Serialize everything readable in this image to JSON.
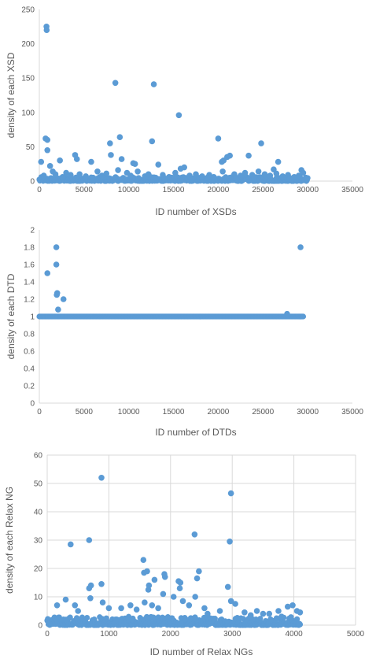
{
  "chart_data": [
    {
      "type": "scatter",
      "xlabel": "ID number of XSDs",
      "ylabel": "density of each XSD",
      "xlim": [
        0,
        35000
      ],
      "ylim": [
        0,
        250
      ],
      "xticks": [
        0,
        5000,
        10000,
        15000,
        20000,
        25000,
        30000,
        35000
      ],
      "yticks": [
        0,
        50,
        100,
        150,
        200,
        250
      ],
      "grid": false,
      "color": "#5b9bd5",
      "points": [
        [
          800,
          225
        ],
        [
          820,
          220
        ],
        [
          8500,
          143
        ],
        [
          12800,
          141
        ],
        [
          15600,
          96
        ],
        [
          700,
          62
        ],
        [
          900,
          60
        ],
        [
          9000,
          64
        ],
        [
          20000,
          62
        ],
        [
          7900,
          55
        ],
        [
          12600,
          58
        ],
        [
          24800,
          55
        ],
        [
          900,
          45
        ],
        [
          200,
          28
        ],
        [
          2300,
          30
        ],
        [
          4000,
          38
        ],
        [
          4200,
          32
        ],
        [
          5800,
          28
        ],
        [
          8000,
          38
        ],
        [
          9200,
          32
        ],
        [
          10500,
          26
        ],
        [
          10700,
          25
        ],
        [
          13300,
          24
        ],
        [
          15800,
          18
        ],
        [
          16200,
          20
        ],
        [
          20400,
          28
        ],
        [
          20600,
          30
        ],
        [
          21000,
          35
        ],
        [
          21300,
          37
        ],
        [
          20500,
          14
        ],
        [
          23400,
          37
        ],
        [
          26700,
          28
        ],
        [
          26200,
          17
        ],
        [
          29300,
          16
        ],
        [
          29500,
          12
        ],
        [
          1200,
          22
        ],
        [
          1500,
          14
        ],
        [
          3000,
          12
        ],
        [
          3500,
          9
        ],
        [
          4500,
          10
        ],
        [
          6500,
          14
        ],
        [
          7000,
          8
        ],
        [
          7500,
          11
        ],
        [
          8800,
          16
        ],
        [
          9800,
          12
        ],
        [
          10200,
          8
        ],
        [
          11000,
          14
        ],
        [
          11800,
          7
        ],
        [
          12200,
          10
        ],
        [
          13800,
          9
        ],
        [
          14500,
          6
        ],
        [
          15200,
          12
        ],
        [
          16800,
          8
        ],
        [
          17500,
          10
        ],
        [
          18200,
          7
        ],
        [
          19000,
          9
        ],
        [
          19500,
          6
        ],
        [
          21800,
          10
        ],
        [
          22500,
          8
        ],
        [
          23000,
          12
        ],
        [
          23800,
          9
        ],
        [
          24500,
          14
        ],
        [
          25200,
          10
        ],
        [
          25800,
          8
        ],
        [
          26500,
          11
        ],
        [
          27200,
          7
        ],
        [
          27800,
          9
        ],
        [
          28500,
          6
        ],
        [
          29000,
          8
        ],
        [
          29800,
          5
        ],
        [
          500,
          8
        ],
        [
          1800,
          10
        ],
        [
          2600,
          6
        ],
        [
          5200,
          7
        ],
        [
          6000,
          5
        ],
        [
          13000,
          5
        ],
        [
          14000,
          4
        ],
        [
          17000,
          4
        ],
        [
          18800,
          5
        ],
        [
          22000,
          5
        ],
        [
          24000,
          4
        ],
        [
          28000,
          4
        ]
      ],
      "dense_baseline": {
        "x_range": [
          0,
          30000
        ],
        "y_range": [
          0,
          6
        ]
      }
    },
    {
      "type": "scatter",
      "xlabel": "ID number of DTDs",
      "ylabel": "density of each DTD",
      "xlim": [
        0,
        35000
      ],
      "ylim": [
        0,
        2
      ],
      "xticks": [
        0,
        5000,
        10000,
        15000,
        20000,
        25000,
        30000,
        35000
      ],
      "yticks": [
        0,
        0.2,
        0.4,
        0.6,
        0.8,
        1,
        1.2,
        1.4,
        1.6,
        1.8,
        2
      ],
      "ytick_labels": [
        "0",
        "0.2",
        "0.4",
        "0.6",
        "0.8",
        "1",
        "1.2",
        "1.4",
        "1.6",
        "1.8",
        "2"
      ],
      "grid": false,
      "color": "#5b9bd5",
      "points": [
        [
          900,
          1.5
        ],
        [
          1900,
          1.8
        ],
        [
          1900,
          1.6
        ],
        [
          2000,
          1.27
        ],
        [
          1950,
          1.25
        ],
        [
          2700,
          1.2
        ],
        [
          2100,
          1.08
        ],
        [
          27700,
          1.03
        ],
        [
          29200,
          1.8
        ]
      ],
      "dense_baseline": {
        "x_range": [
          0,
          29500
        ],
        "y": 1
      }
    },
    {
      "type": "scatter",
      "xlabel": "ID number of Relax NGs",
      "ylabel": "density of each Relax NG",
      "xlim": [
        0,
        5000
      ],
      "ylim": [
        0,
        60
      ],
      "xticks": [
        0,
        1000,
        2000,
        3000,
        4000,
        5000
      ],
      "yticks": [
        0,
        10,
        20,
        30,
        40,
        50,
        60
      ],
      "grid": true,
      "color": "#5b9bd5",
      "points": [
        [
          880,
          52
        ],
        [
          2980,
          46.5
        ],
        [
          2390,
          32
        ],
        [
          680,
          30
        ],
        [
          2960,
          29.5
        ],
        [
          380,
          28.5
        ],
        [
          1560,
          23
        ],
        [
          1620,
          19
        ],
        [
          2460,
          19
        ],
        [
          1570,
          18.5
        ],
        [
          1900,
          18
        ],
        [
          1910,
          17
        ],
        [
          1740,
          16
        ],
        [
          2430,
          16.5
        ],
        [
          2130,
          15.5
        ],
        [
          2160,
          15
        ],
        [
          1650,
          14
        ],
        [
          880,
          14.5
        ],
        [
          710,
          14
        ],
        [
          2930,
          13.5
        ],
        [
          680,
          13
        ],
        [
          1640,
          12.5
        ],
        [
          2150,
          13
        ],
        [
          1880,
          11
        ],
        [
          2050,
          10
        ],
        [
          2400,
          10
        ],
        [
          700,
          9.5
        ],
        [
          300,
          9
        ],
        [
          1580,
          8
        ],
        [
          2980,
          8.5
        ],
        [
          3050,
          7.5
        ],
        [
          2200,
          8.5
        ],
        [
          160,
          7
        ],
        [
          450,
          7
        ],
        [
          900,
          8
        ],
        [
          1200,
          6
        ],
        [
          1350,
          7
        ],
        [
          1450,
          5.5
        ],
        [
          1800,
          6
        ],
        [
          2300,
          7
        ],
        [
          2550,
          6
        ],
        [
          2800,
          5
        ],
        [
          3200,
          4.5
        ],
        [
          3400,
          5
        ],
        [
          3600,
          4
        ],
        [
          3750,
          5
        ],
        [
          3900,
          6.5
        ],
        [
          3980,
          7
        ],
        [
          4050,
          5
        ],
        [
          4100,
          4.5
        ],
        [
          500,
          5
        ],
        [
          1000,
          6
        ],
        [
          1700,
          7
        ],
        [
          2600,
          4
        ],
        [
          3300,
          3.5
        ],
        [
          3500,
          4
        ],
        [
          3800,
          3
        ]
      ],
      "dense_baseline": {
        "x_range": [
          0,
          4100
        ],
        "y_range": [
          0,
          3
        ]
      }
    }
  ]
}
